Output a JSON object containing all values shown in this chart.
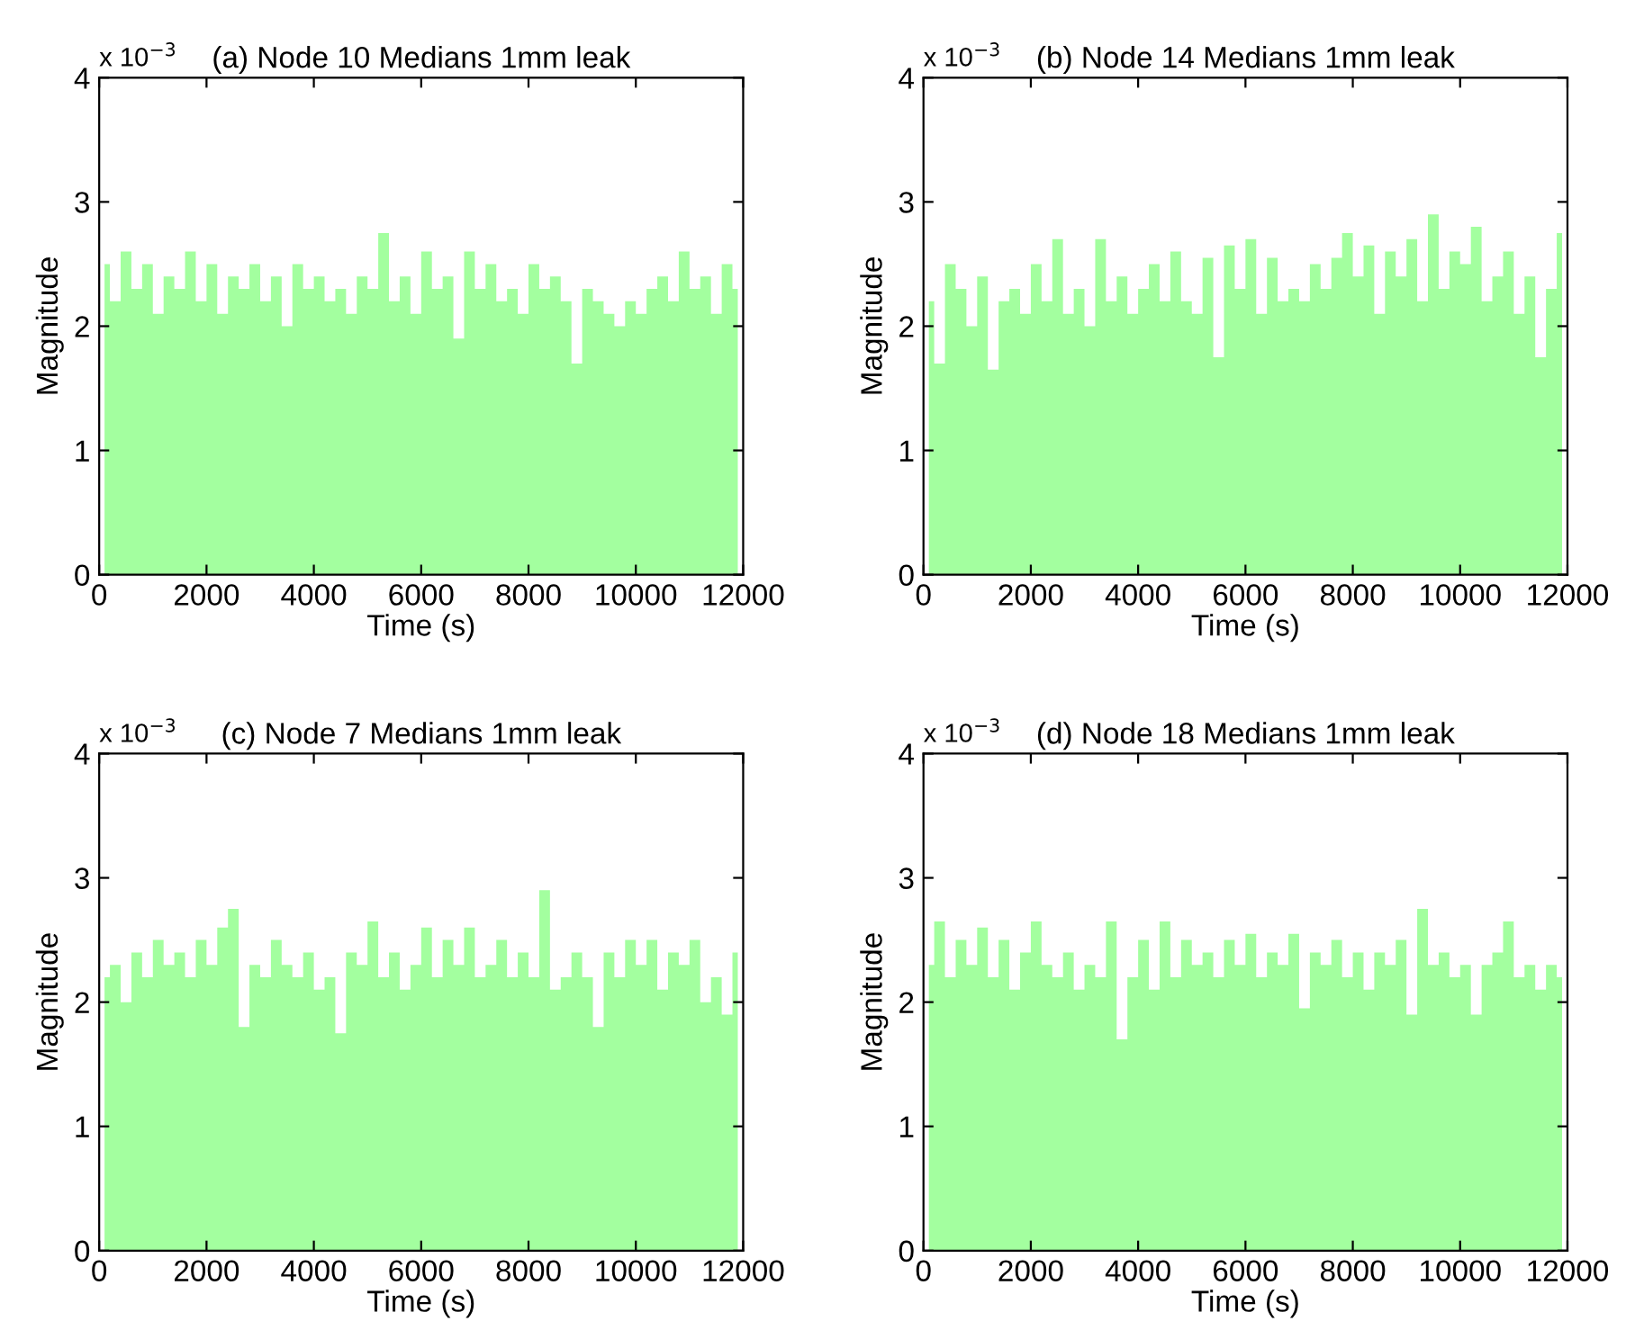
{
  "chart_data": [
    {
      "type": "area",
      "title": "(a) Node 10 Medians 1mm leak",
      "xlabel": "Time (s)",
      "ylabel": "Magnitude",
      "annotations": [
        "x 10$^{−3}$"
      ],
      "color": "#a3ff9f",
      "xlim": [
        0,
        12000
      ],
      "ylim": [
        0,
        4
      ],
      "xticks": [
        0,
        2000,
        4000,
        6000,
        8000,
        10000,
        12000
      ],
      "yticks": [
        0,
        1,
        2,
        3,
        4
      ],
      "grid": false,
      "x": [
        100,
        300,
        500,
        700,
        900,
        1100,
        1300,
        1500,
        1700,
        1900,
        2100,
        2300,
        2500,
        2700,
        2900,
        3100,
        3300,
        3500,
        3700,
        3900,
        4100,
        4300,
        4500,
        4700,
        4900,
        5100,
        5300,
        5500,
        5700,
        5900,
        6100,
        6300,
        6500,
        6700,
        6900,
        7100,
        7300,
        7500,
        7700,
        7900,
        8100,
        8300,
        8500,
        8700,
        8900,
        9100,
        9300,
        9500,
        9700,
        9900,
        10100,
        10300,
        10500,
        10700,
        10900,
        11100,
        11300,
        11500,
        11700,
        11900
      ],
      "values": [
        2.5,
        2.2,
        2.6,
        2.3,
        2.5,
        2.1,
        2.4,
        2.3,
        2.6,
        2.2,
        2.5,
        2.1,
        2.4,
        2.3,
        2.5,
        2.2,
        2.4,
        2.0,
        2.5,
        2.3,
        2.4,
        2.2,
        2.3,
        2.1,
        2.4,
        2.3,
        2.75,
        2.2,
        2.4,
        2.1,
        2.6,
        2.3,
        2.4,
        1.9,
        2.6,
        2.3,
        2.5,
        2.2,
        2.3,
        2.1,
        2.5,
        2.3,
        2.4,
        2.2,
        1.7,
        2.3,
        2.2,
        2.1,
        2.0,
        2.2,
        2.1,
        2.3,
        2.4,
        2.2,
        2.6,
        2.3,
        2.4,
        2.1,
        2.5,
        2.3
      ]
    },
    {
      "type": "area",
      "title": "(b) Node 14 Medians 1mm leak",
      "xlabel": "Time (s)",
      "ylabel": "Magnitude",
      "annotations": [
        "x 10$^{−3}$"
      ],
      "color": "#a3ff9f",
      "xlim": [
        0,
        12000
      ],
      "ylim": [
        0,
        4
      ],
      "xticks": [
        0,
        2000,
        4000,
        6000,
        8000,
        10000,
        12000
      ],
      "yticks": [
        0,
        1,
        2,
        3,
        4
      ],
      "grid": false,
      "x": [
        100,
        300,
        500,
        700,
        900,
        1100,
        1300,
        1500,
        1700,
        1900,
        2100,
        2300,
        2500,
        2700,
        2900,
        3100,
        3300,
        3500,
        3700,
        3900,
        4100,
        4300,
        4500,
        4700,
        4900,
        5100,
        5300,
        5500,
        5700,
        5900,
        6100,
        6300,
        6500,
        6700,
        6900,
        7100,
        7300,
        7500,
        7700,
        7900,
        8100,
        8300,
        8500,
        8700,
        8900,
        9100,
        9300,
        9500,
        9700,
        9900,
        10100,
        10300,
        10500,
        10700,
        10900,
        11100,
        11300,
        11500,
        11700,
        11900
      ],
      "values": [
        2.2,
        1.7,
        2.5,
        2.3,
        2.0,
        2.4,
        1.65,
        2.2,
        2.3,
        2.1,
        2.5,
        2.2,
        2.7,
        2.1,
        2.3,
        2.0,
        2.7,
        2.2,
        2.4,
        2.1,
        2.3,
        2.5,
        2.2,
        2.6,
        2.2,
        2.1,
        2.55,
        1.75,
        2.65,
        2.3,
        2.7,
        2.1,
        2.55,
        2.2,
        2.3,
        2.2,
        2.5,
        2.3,
        2.55,
        2.75,
        2.4,
        2.65,
        2.1,
        2.6,
        2.4,
        2.7,
        2.2,
        2.9,
        2.3,
        2.6,
        2.5,
        2.8,
        2.2,
        2.4,
        2.6,
        2.1,
        2.4,
        1.75,
        2.3,
        2.75
      ]
    },
    {
      "type": "area",
      "title": "(c) Node 7 Medians 1mm leak",
      "xlabel": "Time (s)",
      "ylabel": "Magnitude",
      "annotations": [
        "x 10$^{−3}$"
      ],
      "color": "#a3ff9f",
      "xlim": [
        0,
        12000
      ],
      "ylim": [
        0,
        4
      ],
      "xticks": [
        0,
        2000,
        4000,
        6000,
        8000,
        10000,
        12000
      ],
      "yticks": [
        0,
        1,
        2,
        3,
        4
      ],
      "grid": false,
      "x": [
        100,
        300,
        500,
        700,
        900,
        1100,
        1300,
        1500,
        1700,
        1900,
        2100,
        2300,
        2500,
        2700,
        2900,
        3100,
        3300,
        3500,
        3700,
        3900,
        4100,
        4300,
        4500,
        4700,
        4900,
        5100,
        5300,
        5500,
        5700,
        5900,
        6100,
        6300,
        6500,
        6700,
        6900,
        7100,
        7300,
        7500,
        7700,
        7900,
        8100,
        8300,
        8500,
        8700,
        8900,
        9100,
        9300,
        9500,
        9700,
        9900,
        10100,
        10300,
        10500,
        10700,
        10900,
        11100,
        11300,
        11500,
        11700,
        11900
      ],
      "values": [
        2.2,
        2.3,
        2.0,
        2.4,
        2.2,
        2.5,
        2.3,
        2.4,
        2.2,
        2.5,
        2.3,
        2.6,
        2.75,
        1.8,
        2.3,
        2.2,
        2.5,
        2.3,
        2.2,
        2.4,
        2.1,
        2.2,
        1.75,
        2.4,
        2.3,
        2.65,
        2.2,
        2.4,
        2.1,
        2.3,
        2.6,
        2.2,
        2.5,
        2.3,
        2.6,
        2.2,
        2.3,
        2.5,
        2.2,
        2.4,
        2.2,
        2.9,
        2.1,
        2.2,
        2.4,
        2.2,
        1.8,
        2.4,
        2.2,
        2.5,
        2.3,
        2.5,
        2.1,
        2.4,
        2.3,
        2.5,
        2.0,
        2.2,
        1.9,
        2.4
      ]
    },
    {
      "type": "area",
      "title": "(d) Node 18 Medians 1mm leak",
      "xlabel": "Time (s)",
      "ylabel": "Magnitude",
      "annotations": [
        "x 10$^{−3}$"
      ],
      "color": "#a3ff9f",
      "xlim": [
        0,
        12000
      ],
      "ylim": [
        0,
        4
      ],
      "xticks": [
        0,
        2000,
        4000,
        6000,
        8000,
        10000,
        12000
      ],
      "yticks": [
        0,
        1,
        2,
        3,
        4
      ],
      "grid": false,
      "x": [
        100,
        300,
        500,
        700,
        900,
        1100,
        1300,
        1500,
        1700,
        1900,
        2100,
        2300,
        2500,
        2700,
        2900,
        3100,
        3300,
        3500,
        3700,
        3900,
        4100,
        4300,
        4500,
        4700,
        4900,
        5100,
        5300,
        5500,
        5700,
        5900,
        6100,
        6300,
        6500,
        6700,
        6900,
        7100,
        7300,
        7500,
        7700,
        7900,
        8100,
        8300,
        8500,
        8700,
        8900,
        9100,
        9300,
        9500,
        9700,
        9900,
        10100,
        10300,
        10500,
        10700,
        10900,
        11100,
        11300,
        11500,
        11700,
        11900
      ],
      "values": [
        2.3,
        2.65,
        2.2,
        2.5,
        2.3,
        2.6,
        2.2,
        2.5,
        2.1,
        2.4,
        2.65,
        2.3,
        2.2,
        2.4,
        2.1,
        2.3,
        2.2,
        2.65,
        1.7,
        2.2,
        2.5,
        2.1,
        2.65,
        2.2,
        2.5,
        2.3,
        2.4,
        2.2,
        2.5,
        2.3,
        2.55,
        2.2,
        2.4,
        2.3,
        2.55,
        1.95,
        2.4,
        2.3,
        2.5,
        2.2,
        2.4,
        2.1,
        2.4,
        2.3,
        2.5,
        1.9,
        2.75,
        2.3,
        2.4,
        2.2,
        2.3,
        1.9,
        2.3,
        2.4,
        2.65,
        2.2,
        2.3,
        2.1,
        2.3,
        2.2
      ]
    }
  ]
}
